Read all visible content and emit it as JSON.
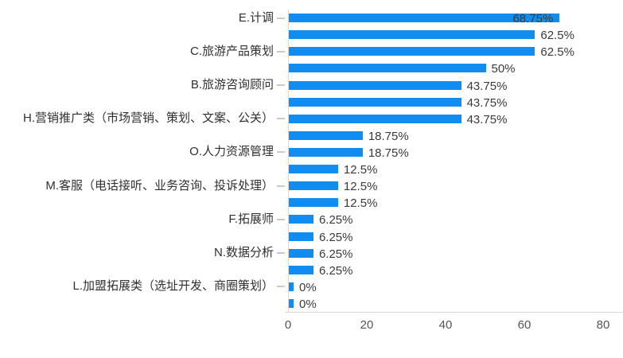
{
  "chart_data": {
    "type": "bar",
    "orientation": "horizontal",
    "title": "",
    "xlabel": "",
    "ylabel": "",
    "xlim": [
      0,
      80
    ],
    "x_ticks": [
      "0",
      "20",
      "40",
      "60",
      "80"
    ],
    "grid": false,
    "legend": "none",
    "bar_color": "#118DF2",
    "category_label_color": "#303030",
    "value_label_color": "#3A3A3A",
    "axis_line_color": "#D9D9D9",
    "tick_label_color": "#555555",
    "rows": [
      {
        "label": "E.计调",
        "value": 68.75,
        "value_label": "68.75%",
        "label_inside": true
      },
      {
        "label": "",
        "value": 62.5,
        "value_label": "62.5%"
      },
      {
        "label": "C.旅游产品策划",
        "value": 62.5,
        "value_label": "62.5%"
      },
      {
        "label": "",
        "value": 50,
        "value_label": "50%"
      },
      {
        "label": "B.旅游咨询顾问",
        "value": 43.75,
        "value_label": "43.75%"
      },
      {
        "label": "",
        "value": 43.75,
        "value_label": "43.75%"
      },
      {
        "label": "H.营销推广类（市场营销、策划、文案、公关）",
        "value": 43.75,
        "value_label": "43.75%"
      },
      {
        "label": "",
        "value": 18.75,
        "value_label": "18.75%"
      },
      {
        "label": "O.人力资源管理",
        "value": 18.75,
        "value_label": "18.75%"
      },
      {
        "label": "",
        "value": 12.5,
        "value_label": "12.5%"
      },
      {
        "label": "M.客服（电话接听、业务咨询、投诉处理）",
        "value": 12.5,
        "value_label": "12.5%"
      },
      {
        "label": "",
        "value": 12.5,
        "value_label": "12.5%"
      },
      {
        "label": "F.拓展师",
        "value": 6.25,
        "value_label": "6.25%"
      },
      {
        "label": "",
        "value": 6.25,
        "value_label": "6.25%"
      },
      {
        "label": "N.数据分析",
        "value": 6.25,
        "value_label": "6.25%"
      },
      {
        "label": "",
        "value": 6.25,
        "value_label": "6.25%"
      },
      {
        "label": "L.加盟拓展类（选址开发、商圈策划）",
        "value": 0,
        "value_label": "0%"
      },
      {
        "label": "",
        "value": 0,
        "value_label": "0%"
      }
    ]
  }
}
